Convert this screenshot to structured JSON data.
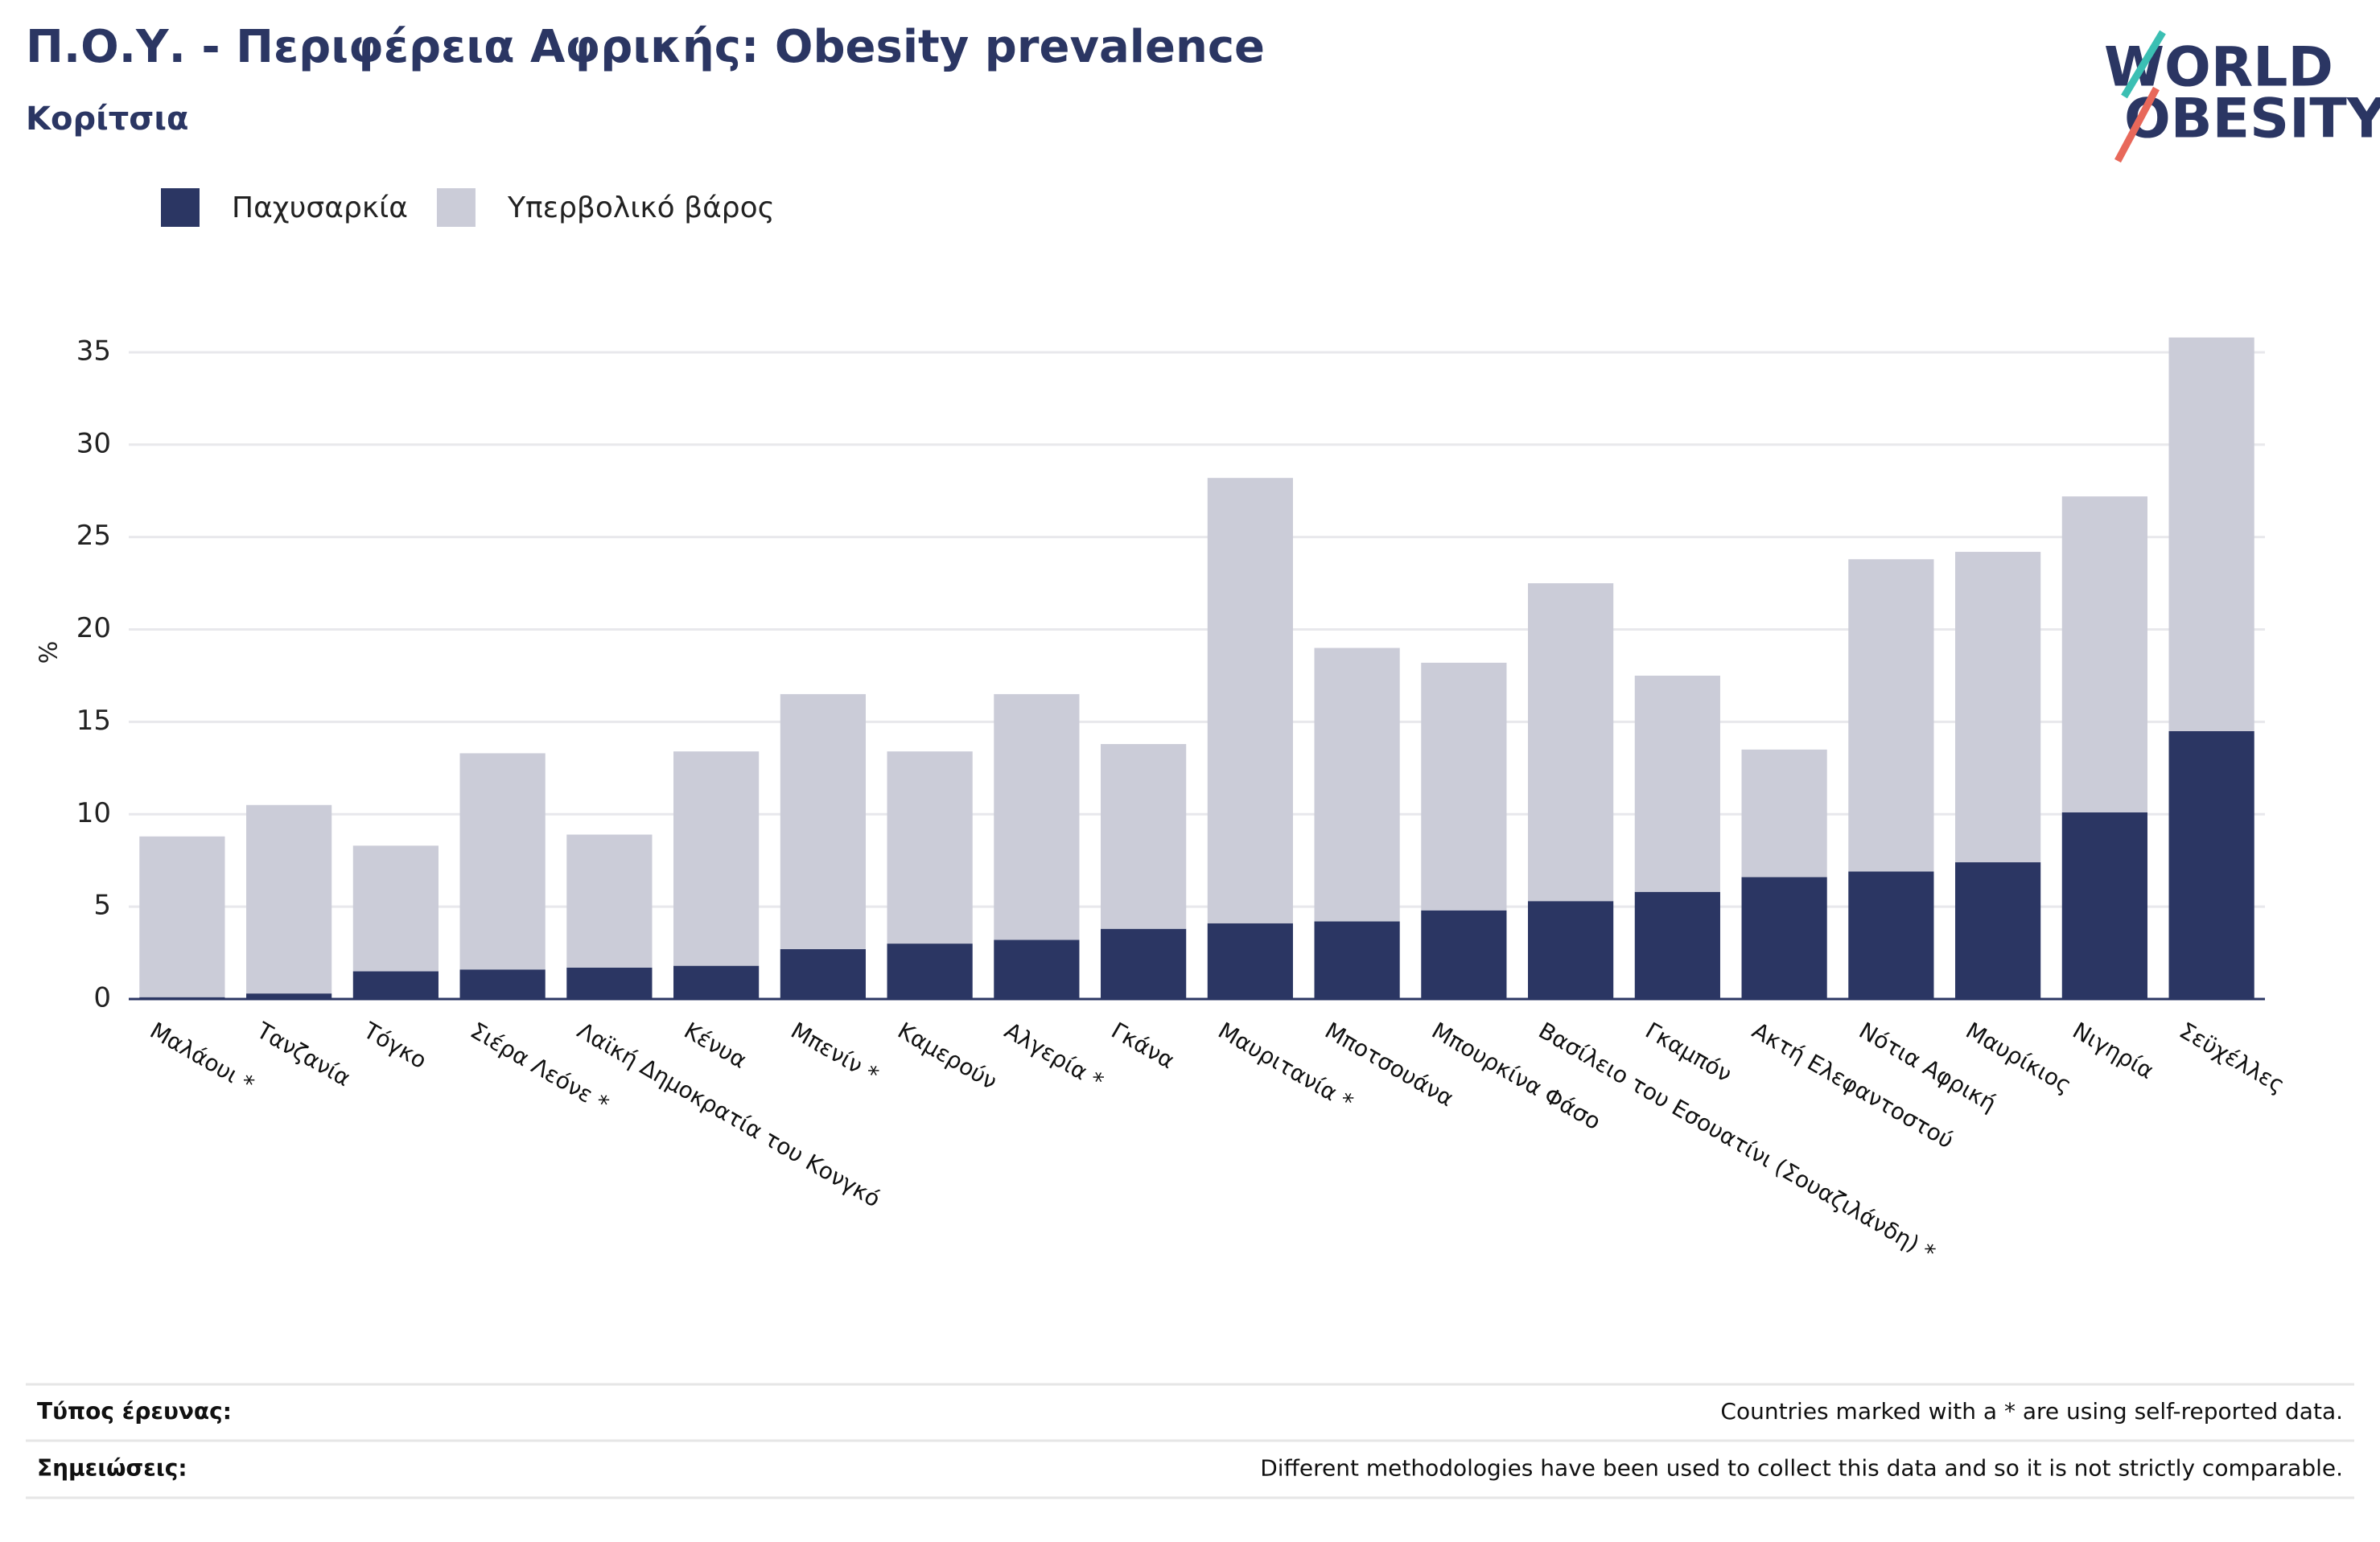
{
  "chart_data": {
    "type": "stacked-bar",
    "title": "Π.Ο.Υ. - Περιφέρεια Αφρικής: Obesity prevalence",
    "subtitle": "Κορίτσια",
    "ylabel": "%",
    "categories": [
      "Μαλάουι *",
      "Τανζανία",
      "Τόγκο",
      "Σιέρα Λεόνε *",
      "Λαϊκή Δημοκρατία του Κονγκό",
      "Κένυα",
      "Μπενίν *",
      "Καμερούν",
      "Αλγερία *",
      "Γκάνα",
      "Μαυριτανία *",
      "Μποτσουάνα",
      "Μπουρκίνα Φάσο",
      "Βασίλειο του Εσουατίνι (Σουαζιλάνδη) *",
      "Γκαμπόν",
      "Ακτή Ελεφαντοστού",
      "Νότια Αφρική",
      "Μαυρίκιος",
      "Νιγηρία",
      "Σεϋχέλλες"
    ],
    "series": [
      {
        "name": "Παχυσαρκία",
        "color": "#2b3663",
        "values": [
          0.1,
          0.3,
          1.5,
          1.6,
          1.7,
          1.8,
          2.7,
          3.0,
          3.2,
          3.8,
          4.1,
          4.2,
          4.8,
          5.3,
          5.8,
          6.6,
          6.9,
          7.4,
          10.1,
          14.5
        ]
      },
      {
        "name": "Υπερβολικό βάρος",
        "color": "#cbccd8",
        "values": [
          8.7,
          10.2,
          6.8,
          11.7,
          7.2,
          11.6,
          13.8,
          10.4,
          13.3,
          10.0,
          24.1,
          14.8,
          13.4,
          17.2,
          11.7,
          6.9,
          16.9,
          16.8,
          17.1,
          21.3
        ]
      }
    ],
    "ylim": [
      0,
      37
    ],
    "yticks": [
      0,
      5,
      10,
      15,
      20,
      25,
      30,
      35
    ],
    "grid": true,
    "legend": "top-left"
  },
  "logo": {
    "line1": "WORLD",
    "line2": "OBESITY"
  },
  "footer": {
    "rows": [
      {
        "label": "Τύπος έρευνας:",
        "text": "Countries marked with a * are using self-reported data."
      },
      {
        "label": "Σημειώσεις:",
        "text": "Different methodologies have been used to collect this data and so it is not strictly comparable."
      }
    ]
  }
}
